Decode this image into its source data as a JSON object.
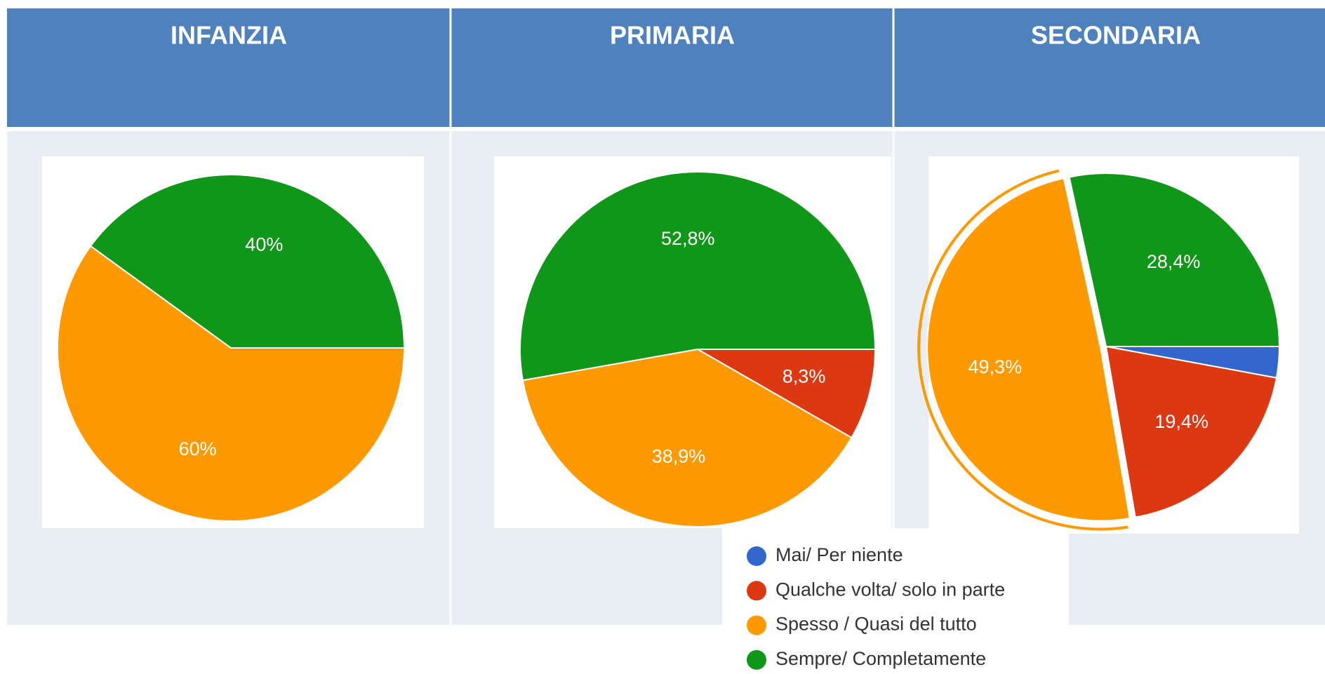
{
  "headers": [
    "INFANZIA",
    "PRIMARIA",
    "SECONDARIA"
  ],
  "legend": [
    {
      "name": "Mai/ Per niente",
      "color": "#3366cc"
    },
    {
      "name": "Qualche volta/ solo in parte",
      "color": "#dc3912"
    },
    {
      "name": "Spesso / Quasi del tutto",
      "color": "#ff9900"
    },
    {
      "name": "Sempre/ Completamente",
      "color": "#109618"
    }
  ],
  "chart_data": [
    {
      "type": "pie",
      "values": [
        0,
        0,
        60,
        40
      ],
      "value_labels": [
        null,
        null,
        "60%",
        "40%"
      ]
    },
    {
      "type": "pie",
      "values": [
        0,
        8.3,
        38.9,
        52.8
      ],
      "value_labels": [
        null,
        "8,3%",
        "38,9%",
        "52,8%"
      ]
    },
    {
      "type": "pie",
      "values": [
        2.9,
        19.4,
        49.3,
        28.4
      ],
      "value_labels": [
        null,
        "19,4%",
        "49,3%",
        "28,4%"
      ],
      "highlighted": 2
    }
  ]
}
